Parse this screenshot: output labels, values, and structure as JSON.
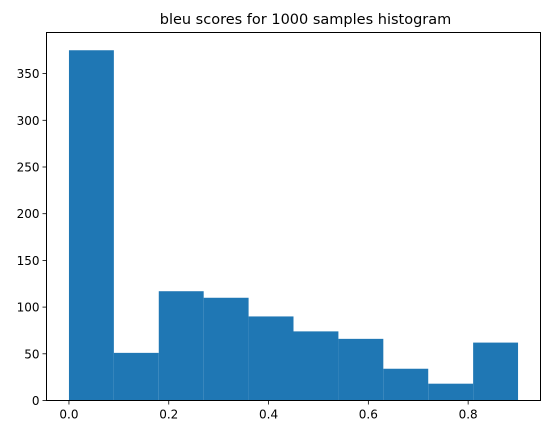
{
  "chart_data": {
    "type": "bar",
    "title": "bleu scores for 1000 samples histogram",
    "xlabel": "",
    "ylabel": "",
    "bin_edges": [
      0.0,
      0.09,
      0.18,
      0.27,
      0.36,
      0.45,
      0.54,
      0.63,
      0.72,
      0.81,
      0.9
    ],
    "values": [
      375,
      51,
      117,
      110,
      90,
      74,
      66,
      34,
      18,
      62
    ],
    "xlim": [
      -0.045,
      0.945
    ],
    "ylim": [
      0,
      394
    ],
    "xticks": [
      0.0,
      0.2,
      0.4,
      0.6,
      0.8
    ],
    "xtick_labels": [
      "0.0",
      "0.2",
      "0.4",
      "0.6",
      "0.8"
    ],
    "yticks": [
      0,
      50,
      100,
      150,
      200,
      250,
      300,
      350
    ],
    "ytick_labels": [
      "0",
      "50",
      "100",
      "150",
      "200",
      "250",
      "300",
      "350"
    ],
    "bar_color": "#1f77b4",
    "grid": false,
    "legend": "none"
  }
}
